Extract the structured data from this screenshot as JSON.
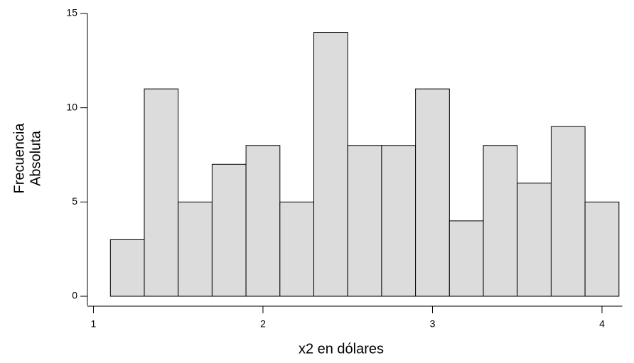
{
  "chart_data": {
    "type": "histogram",
    "x_label": "x2 en dólares",
    "y_label": [
      "Frecuencia",
      "Absoluta"
    ],
    "bins": [
      1.1,
      1.3,
      1.5,
      1.7,
      1.9,
      2.1,
      2.3,
      2.5,
      2.7,
      2.9,
      3.1,
      3.3,
      3.5,
      3.7,
      3.9,
      4.1
    ],
    "values": [
      3,
      11,
      5,
      7,
      8,
      5,
      14,
      8,
      8,
      11,
      4,
      8,
      6,
      9,
      5
    ],
    "color": "#dcdcdc",
    "xlim": [
      0.97,
      4.12
    ],
    "xticks": [
      1,
      2,
      3,
      4
    ],
    "ylim": [
      -0.5,
      15
    ],
    "yticks": [
      0,
      5,
      10,
      15
    ],
    "grid": false
  }
}
